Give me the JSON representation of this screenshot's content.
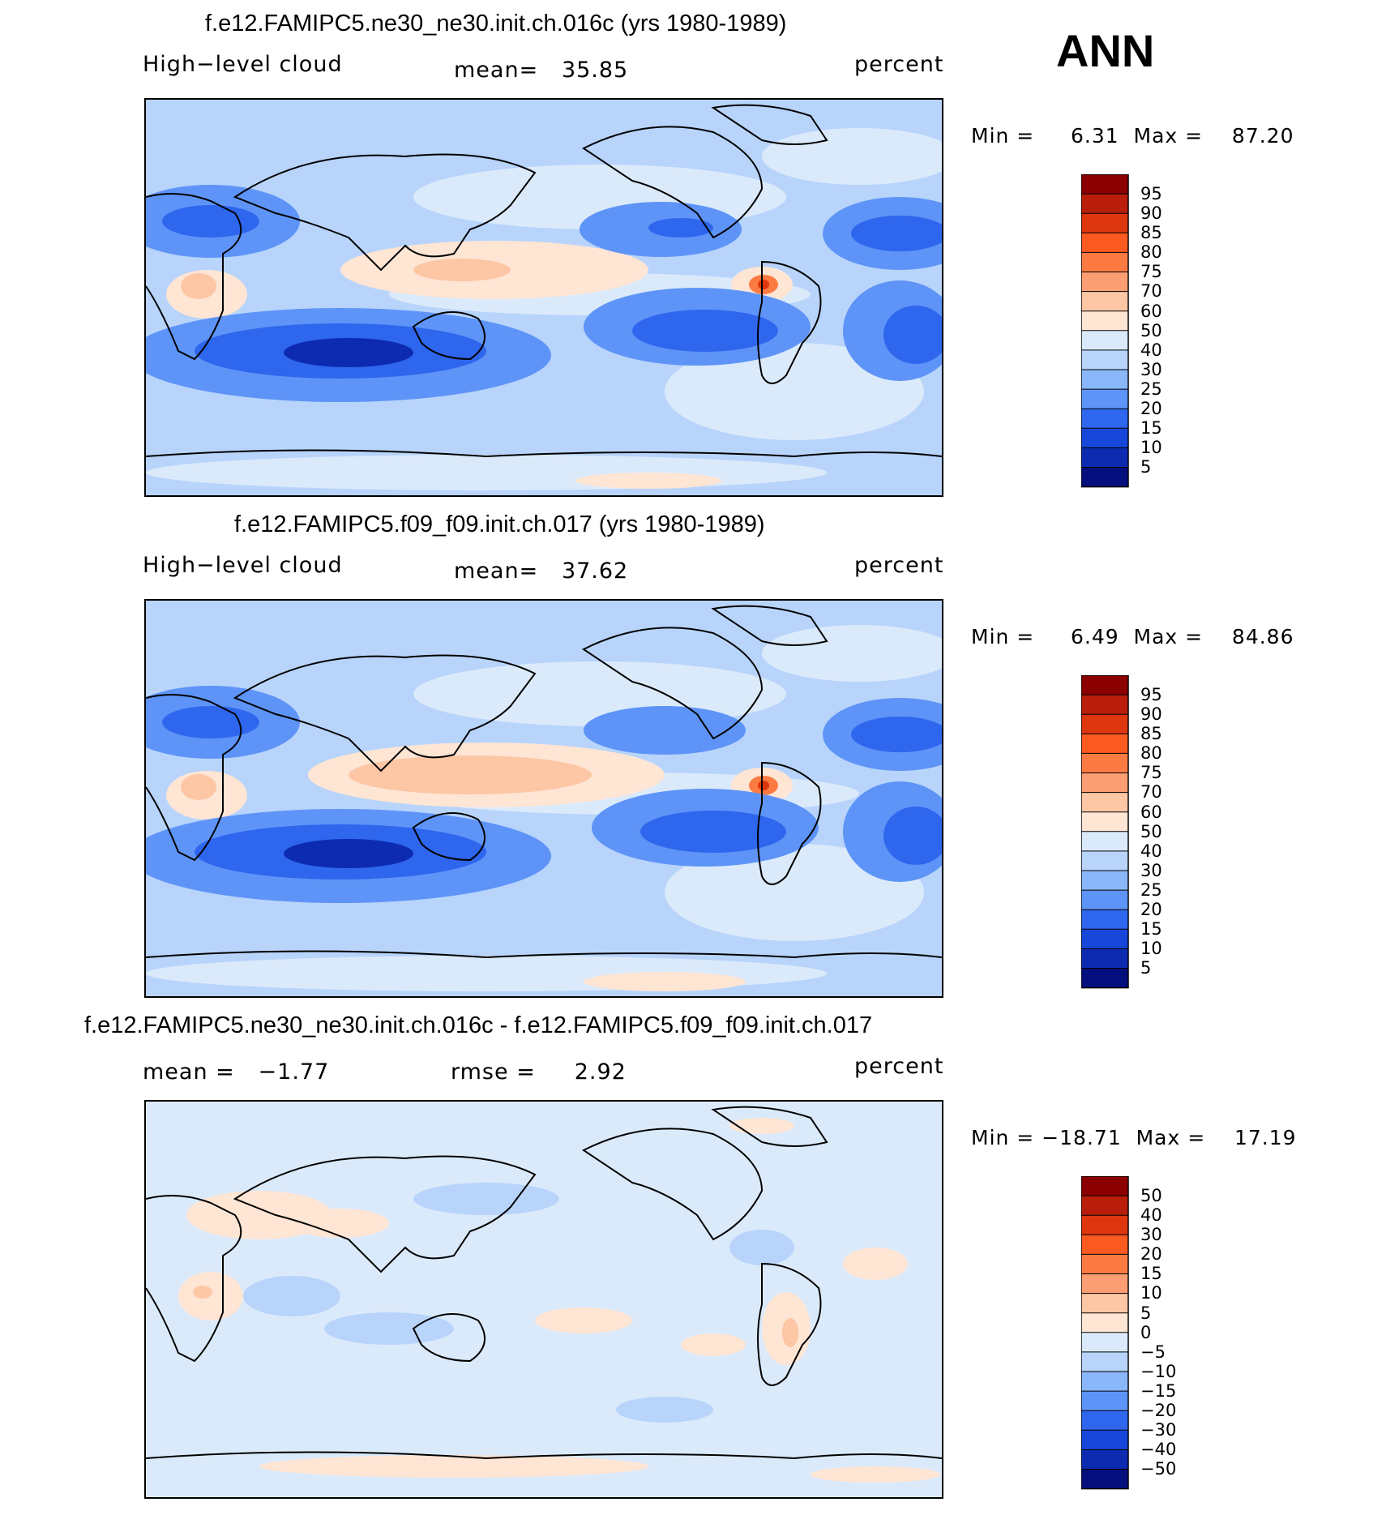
{
  "season": "ANN",
  "panels": [
    {
      "title": "f.e12.FAMIPC5.ne30_ne30.init.ch.016c (yrs 1980-1989)",
      "left_label": "High−level cloud",
      "center_label": "mean=   35.85",
      "right_label": "percent",
      "minmax": "Min =     6.31  Max =    87.20",
      "levels": [
        "95",
        "90",
        "85",
        "80",
        "75",
        "70",
        "60",
        "50",
        "40",
        "30",
        "25",
        "20",
        "15",
        "10",
        "5"
      ]
    },
    {
      "title": "f.e12.FAMIPC5.f09_f09.init.ch.017 (yrs 1980-1989)",
      "left_label": "High−level cloud",
      "center_label": "mean=   37.62",
      "right_label": "percent",
      "minmax": "Min =     6.49  Max =    84.86",
      "levels": [
        "95",
        "90",
        "85",
        "80",
        "75",
        "70",
        "60",
        "50",
        "40",
        "30",
        "25",
        "20",
        "15",
        "10",
        "5"
      ]
    },
    {
      "title": "f.e12.FAMIPC5.ne30_ne30.init.ch.016c - f.e12.FAMIPC5.f09_f09.init.ch.017",
      "left_label": "mean =   −1.77",
      "center_label": "rmse =     2.92",
      "right_label": "percent",
      "minmax": "Min = −18.71  Max =    17.19",
      "levels": [
        "50",
        "40",
        "30",
        "20",
        "15",
        "10",
        "5",
        "0",
        "−5",
        "−10",
        "−15",
        "−20",
        "−30",
        "−40",
        "−50"
      ]
    }
  ],
  "colors": {
    "scale16": [
      "#8b0000",
      "#b81e0a",
      "#de360e",
      "#fb5a20",
      "#fc7b42",
      "#fc9e73",
      "#fdc6a5",
      "#fee5d4",
      "#dbeafb",
      "#b8d4fb",
      "#8ab6fa",
      "#5e94f7",
      "#2e66ee",
      "#1647da",
      "#0d2bb0",
      "#050e7d"
    ]
  }
}
